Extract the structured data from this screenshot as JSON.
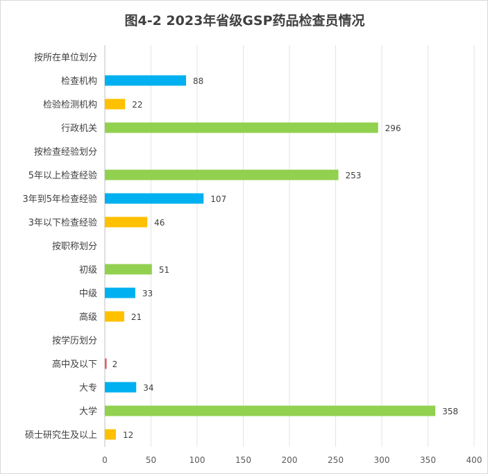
{
  "chart_data": {
    "type": "bar",
    "orientation": "horizontal",
    "title": "图4-2 2023年省级GSP药品检查员情况",
    "categories": [
      "按所在单位划分",
      "检查机构",
      "检验检测机构",
      "行政机关",
      "按检查经验划分",
      "5年以上检查经验",
      "3年到5年检查经验",
      "3年以下检查经验",
      "按职称划分",
      "初级",
      "中级",
      "高级",
      "按学历划分",
      "高中及以下",
      "大专",
      "大学",
      "硕士研究生及以上"
    ],
    "values": [
      null,
      88,
      22,
      296,
      null,
      253,
      107,
      46,
      null,
      51,
      33,
      21,
      null,
      2,
      34,
      358,
      12
    ],
    "colors": [
      null,
      "#00B0F0",
      "#FFC000",
      "#92D050",
      null,
      "#92D050",
      "#00B0F0",
      "#FFC000",
      null,
      "#92D050",
      "#00B0F0",
      "#FFC000",
      null,
      "#E06666",
      "#00B0F0",
      "#92D050",
      "#FFC000"
    ],
    "xlim": [
      0,
      400
    ],
    "xticks": [
      0,
      50,
      100,
      150,
      200,
      250,
      300,
      350,
      400
    ],
    "grid": true,
    "xlabel": "",
    "ylabel": ""
  }
}
